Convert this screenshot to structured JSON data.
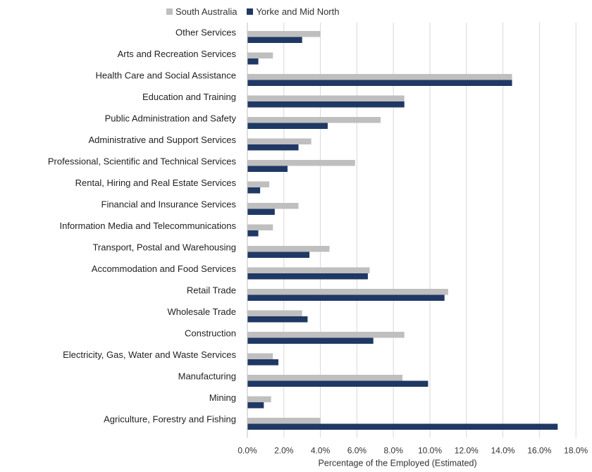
{
  "chart_data": {
    "type": "bar",
    "orientation": "horizontal",
    "categories": [
      "Other Services",
      "Arts and Recreation Services",
      "Health Care and Social Assistance",
      "Education and Training",
      "Public Administration and Safety",
      "Administrative and Support Services",
      "Professional, Scientific and Technical Services",
      "Rental, Hiring and Real Estate Services",
      "Financial and Insurance Services",
      "Information Media and Telecommunications",
      "Transport, Postal and Warehousing",
      "Accommodation and Food Services",
      "Retail Trade",
      "Wholesale Trade",
      "Construction",
      "Electricity, Gas, Water and Waste Services",
      "Manufacturing",
      "Mining",
      "Agriculture, Forestry and Fishing"
    ],
    "series": [
      {
        "name": "South Australia",
        "color": "#bfbfbf",
        "values": [
          4.0,
          1.4,
          14.5,
          8.6,
          7.3,
          3.5,
          5.9,
          1.2,
          2.8,
          1.4,
          4.5,
          6.7,
          11.0,
          3.0,
          8.6,
          1.4,
          8.5,
          1.3,
          4.0
        ]
      },
      {
        "name": "Yorke and Mid North",
        "color": "#1f3864",
        "values": [
          3.0,
          0.6,
          14.5,
          8.6,
          4.4,
          2.8,
          2.2,
          0.7,
          1.5,
          0.6,
          3.4,
          6.6,
          10.8,
          3.3,
          6.9,
          1.7,
          9.9,
          0.9,
          17.0
        ]
      }
    ],
    "xlim": [
      0,
      18
    ],
    "xticks": [
      "0.0%",
      "2.0%",
      "4.0%",
      "6.0%",
      "8.0%",
      "10.0%",
      "12.0%",
      "14.0%",
      "16.0%",
      "18.0%"
    ],
    "xlabel": "Percentage of the Employed (Estimated)",
    "ylabel": "",
    "title": "",
    "grid": "vertical",
    "legend_position": "top"
  }
}
